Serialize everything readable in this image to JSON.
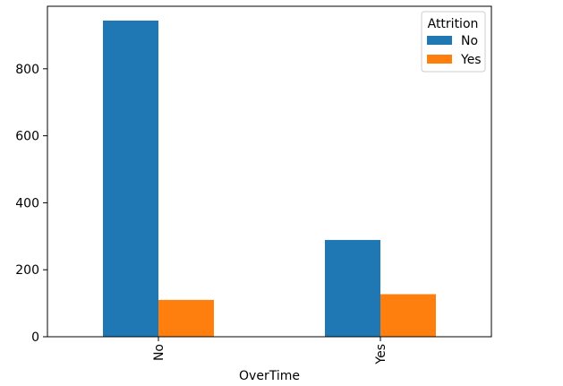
{
  "chart_data": {
    "type": "bar",
    "categories": [
      "No",
      "Yes"
    ],
    "series": [
      {
        "name": "No",
        "values": [
          944,
          289
        ],
        "color": "#1f77b4"
      },
      {
        "name": "Yes",
        "values": [
          110,
          127
        ],
        "color": "#ff7f0e"
      }
    ],
    "xlabel": "OverTime",
    "ylabel": "",
    "ylim": [
      0,
      986.7
    ],
    "yticks": [
      0,
      200,
      400,
      600,
      800
    ],
    "legend": {
      "title": "Attrition",
      "placement": "top-right"
    },
    "grid": false
  }
}
